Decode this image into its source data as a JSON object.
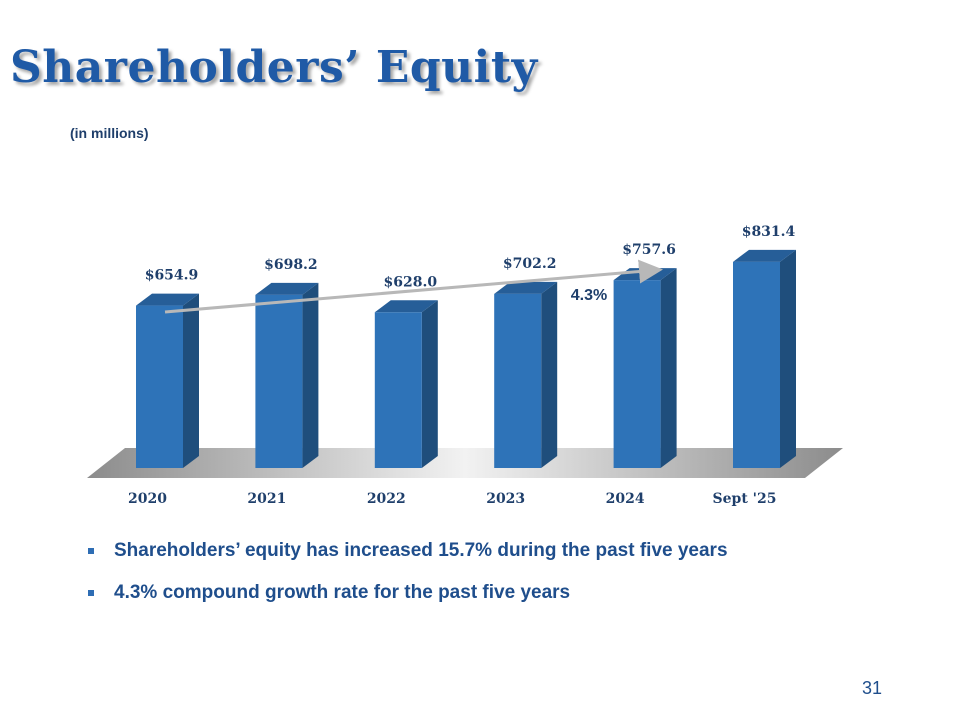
{
  "slide": {
    "title": "Shareholders’ Equity",
    "units_note": "(in millions)",
    "page_number": "31"
  },
  "chart_data": {
    "type": "bar",
    "categories": [
      "2020",
      "2021",
      "2022",
      "2023",
      "2024",
      "Sept '25"
    ],
    "values": [
      654.9,
      698.2,
      628.0,
      702.2,
      757.6,
      831.4
    ],
    "data_labels": [
      "$654.9",
      "$698.2",
      "$628.0",
      "$702.2",
      "$757.6",
      "$831.4"
    ],
    "annotation": "4.3%",
    "colors": {
      "bar_front": "#2e73b8",
      "bar_side": "#1f4e7c",
      "bar_top": "#265e98",
      "label": "#1f3f6b",
      "floor": "#9a9a9a"
    }
  },
  "bullets": [
    "Shareholders’ equity has increased 15.7% during the past five years",
    "4.3% compound growth rate for the past five years"
  ]
}
